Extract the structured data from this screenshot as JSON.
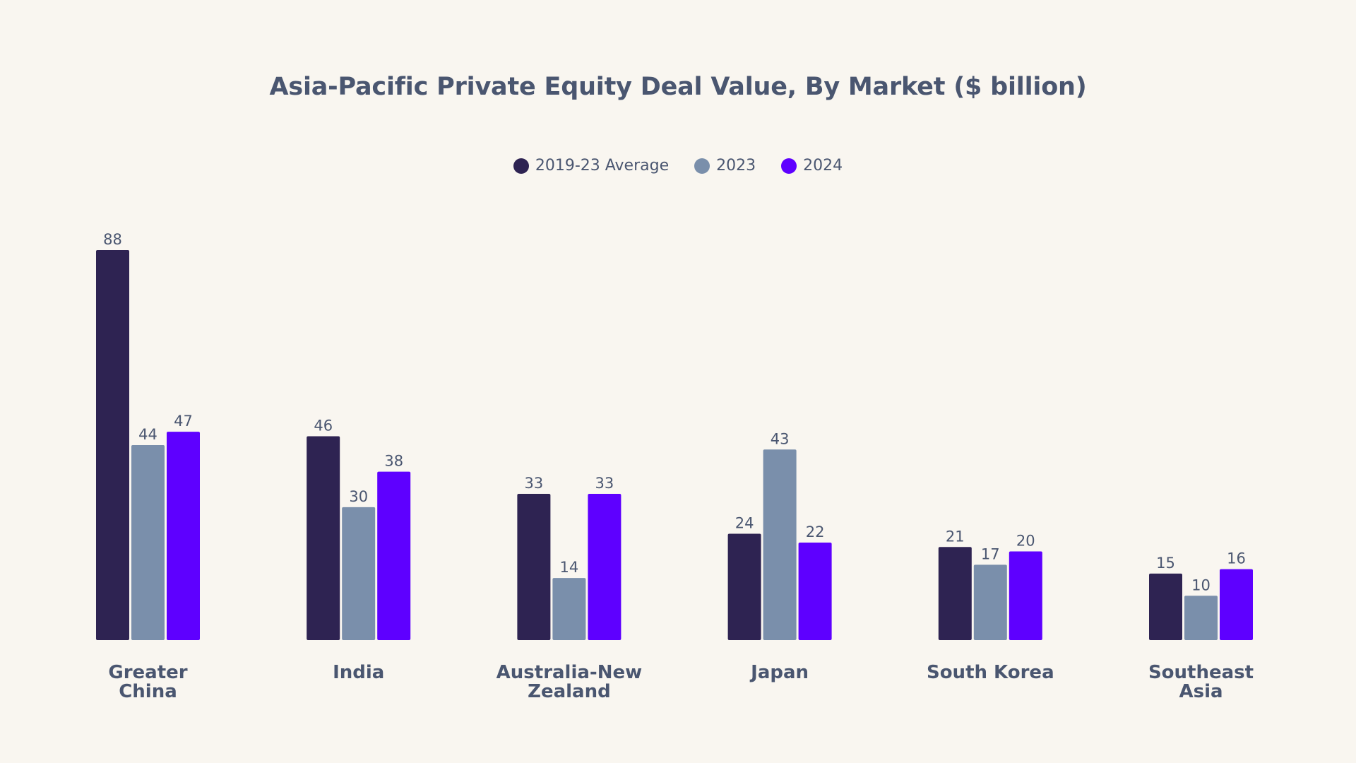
{
  "chart_data": {
    "type": "bar",
    "title": "Asia-Pacific Private Equity Deal Value, By Market ($ billion)",
    "xlabel": "",
    "ylabel": "",
    "ylim": [
      0,
      88
    ],
    "grid": false,
    "legend_position": "top-center",
    "categories": [
      [
        "Greater",
        "China"
      ],
      [
        "India"
      ],
      [
        "Australia-New",
        "Zealand"
      ],
      [
        "Japan"
      ],
      [
        "South Korea"
      ],
      [
        "Southeast",
        "Asia"
      ]
    ],
    "series": [
      {
        "name": "2019-23 Average",
        "color": "#2E2352",
        "values": [
          88,
          46,
          33,
          24,
          21,
          15
        ]
      },
      {
        "name": "2023",
        "color": "#7A8FAB",
        "values": [
          44,
          30,
          14,
          43,
          17,
          10
        ]
      },
      {
        "name": "2024",
        "color": "#5E00FF",
        "values": [
          47,
          38,
          33,
          22,
          20,
          16
        ]
      }
    ]
  }
}
